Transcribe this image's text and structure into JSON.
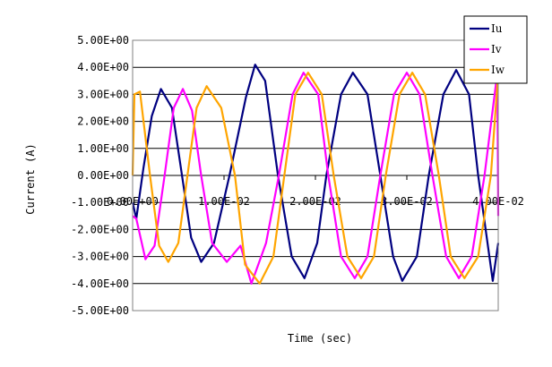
{
  "chart_data": {
    "type": "line",
    "xlabel": "Time (sec)",
    "ylabel": "Current (A)",
    "xlim": [
      0,
      0.04
    ],
    "ylim": [
      -5,
      5
    ],
    "y_ticks": [
      5,
      4,
      3,
      2,
      1,
      0,
      -1,
      -2,
      -3,
      -4,
      -5
    ],
    "y_tick_labels": [
      "5.00E+00",
      "4.00E+00",
      "3.00E+00",
      "2.00E+00",
      "1.00E+00",
      "0.00E+00",
      "-1.00E+00",
      "-2.00E+00",
      "-3.00E+00",
      "-4.00E+00",
      "-5.00E+00"
    ],
    "x_ticks": [
      0,
      0.01,
      0.02,
      0.03,
      0.04
    ],
    "x_tick_labels": [
      "0.00E+00",
      "1.00E-02",
      "2.00E-02",
      "3.00E-02",
      "4.00E-02"
    ],
    "grid": "horizontal",
    "legend_position": "top-right",
    "series": [
      {
        "name": "Iu",
        "color": "#000080",
        "x": [
          0,
          0.0004,
          0.0012,
          0.0021,
          0.0031,
          0.0043,
          0.0054,
          0.0064,
          0.0075,
          0.0089,
          0.0106,
          0.0124,
          0.0134,
          0.0145,
          0.0159,
          0.0174,
          0.0188,
          0.0202,
          0.0212,
          0.0228,
          0.0241,
          0.0257,
          0.0271,
          0.0285,
          0.0295,
          0.0311,
          0.0324,
          0.034,
          0.0354,
          0.0368,
          0.0378,
          0.0394,
          0.04
        ],
        "y": [
          -1.0,
          -1.6,
          0.3,
          2.2,
          3.2,
          2.5,
          0.0,
          -2.3,
          -3.2,
          -2.5,
          0.0,
          2.9,
          4.1,
          3.5,
          0.0,
          -3.0,
          -3.8,
          -2.5,
          0.0,
          3.0,
          3.8,
          3.0,
          0.0,
          -3.0,
          -3.9,
          -3.0,
          0.0,
          3.0,
          3.9,
          3.0,
          0.0,
          -3.9,
          -2.5
        ]
      },
      {
        "name": "Iv",
        "color": "#FF00FF",
        "x": [
          0,
          0.0004,
          0.0014,
          0.0024,
          0.0035,
          0.0045,
          0.0055,
          0.0065,
          0.0075,
          0.0087,
          0.0103,
          0.0118,
          0.013,
          0.0146,
          0.016,
          0.0175,
          0.0187,
          0.0203,
          0.0214,
          0.0228,
          0.0243,
          0.0257,
          0.0271,
          0.0286,
          0.03,
          0.0314,
          0.0328,
          0.0343,
          0.0357,
          0.0371,
          0.0385,
          0.0399,
          0.04
        ],
        "y": [
          -1.5,
          -1.6,
          -3.1,
          -2.6,
          0.0,
          2.5,
          3.2,
          2.4,
          0.0,
          -2.5,
          -3.2,
          -2.6,
          -4.0,
          -2.5,
          0.0,
          3.0,
          3.8,
          3.0,
          0.0,
          -3.0,
          -3.8,
          -3.0,
          0.0,
          3.0,
          3.8,
          3.0,
          0.0,
          -3.0,
          -3.8,
          -3.0,
          0.0,
          3.8,
          -1.5
        ]
      },
      {
        "name": "Iw",
        "color": "#FFA500",
        "x": [
          0,
          0.0002,
          0.0008,
          0.0019,
          0.0029,
          0.0039,
          0.005,
          0.006,
          0.007,
          0.0081,
          0.0097,
          0.0112,
          0.0123,
          0.0139,
          0.0154,
          0.0166,
          0.0178,
          0.0192,
          0.0207,
          0.022,
          0.0235,
          0.025,
          0.0264,
          0.0277,
          0.0292,
          0.0306,
          0.032,
          0.0335,
          0.0348,
          0.0363,
          0.0378,
          0.0392,
          0.04
        ],
        "y": [
          0.0,
          3.0,
          3.1,
          0.0,
          -2.6,
          -3.2,
          -2.5,
          0.0,
          2.5,
          3.3,
          2.5,
          0.0,
          -3.3,
          -4.0,
          -3.0,
          0.0,
          3.0,
          3.8,
          3.0,
          0.0,
          -3.0,
          -3.8,
          -3.0,
          0.0,
          3.0,
          3.8,
          3.0,
          0.0,
          -3.0,
          -3.8,
          -3.0,
          0.0,
          3.8
        ]
      }
    ]
  }
}
